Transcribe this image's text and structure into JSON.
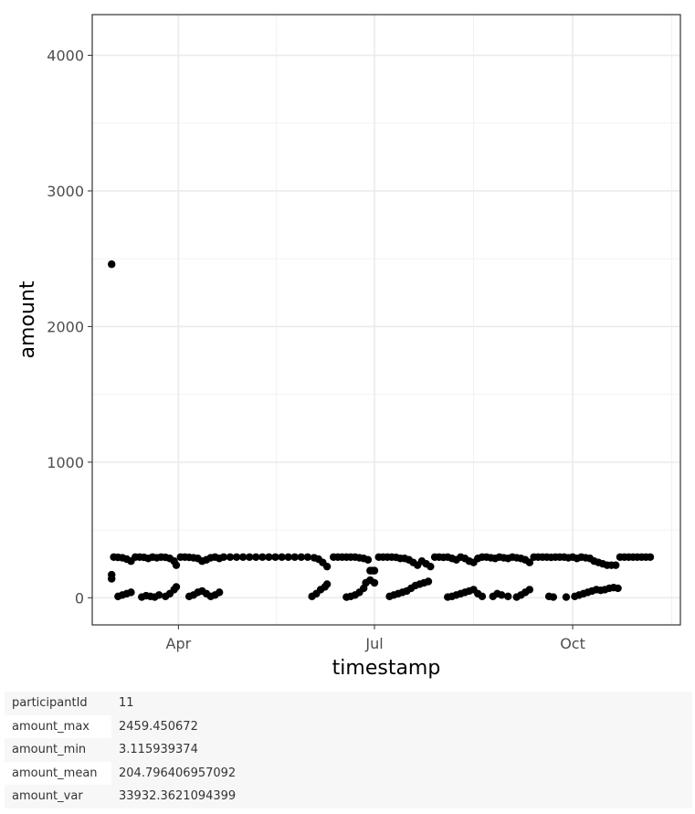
{
  "chart_data": {
    "type": "scatter",
    "title": "",
    "xlabel": "timestamp",
    "ylabel": "amount",
    "x_axis_type": "date",
    "xlim": [
      "2022-02-20",
      "2022-11-20"
    ],
    "ylim": [
      -200,
      4300
    ],
    "x_ticks": [
      {
        "label": "Apr",
        "date": "2022-04-01"
      },
      {
        "label": "Jul",
        "date": "2022-07-01"
      },
      {
        "label": "Oct",
        "date": "2022-10-01"
      }
    ],
    "y_ticks": [
      0,
      1000,
      2000,
      3000,
      4000
    ],
    "grid": true,
    "point_color": "#000000",
    "series": [
      {
        "points": [
          {
            "x": "2022-03-01",
            "y": 2459.45
          },
          {
            "x": "2022-03-01",
            "y": 170
          },
          {
            "x": "2022-03-01",
            "y": 140
          },
          {
            "x": "2022-03-02",
            "y": 300
          },
          {
            "x": "2022-03-04",
            "y": 298
          },
          {
            "x": "2022-03-06",
            "y": 295
          },
          {
            "x": "2022-03-08",
            "y": 285
          },
          {
            "x": "2022-03-10",
            "y": 270
          },
          {
            "x": "2022-03-12",
            "y": 300
          },
          {
            "x": "2022-03-14",
            "y": 300
          },
          {
            "x": "2022-03-16",
            "y": 298
          },
          {
            "x": "2022-03-18",
            "y": 290
          },
          {
            "x": "2022-03-20",
            "y": 300
          },
          {
            "x": "2022-03-22",
            "y": 295
          },
          {
            "x": "2022-03-24",
            "y": 300
          },
          {
            "x": "2022-03-26",
            "y": 298
          },
          {
            "x": "2022-03-28",
            "y": 290
          },
          {
            "x": "2022-03-30",
            "y": 270
          },
          {
            "x": "2022-03-31",
            "y": 240
          },
          {
            "x": "2022-04-02",
            "y": 300
          },
          {
            "x": "2022-04-04",
            "y": 300
          },
          {
            "x": "2022-04-06",
            "y": 298
          },
          {
            "x": "2022-04-08",
            "y": 295
          },
          {
            "x": "2022-04-10",
            "y": 290
          },
          {
            "x": "2022-04-12",
            "y": 270
          },
          {
            "x": "2022-04-14",
            "y": 280
          },
          {
            "x": "2022-04-16",
            "y": 295
          },
          {
            "x": "2022-04-18",
            "y": 300
          },
          {
            "x": "2022-04-20",
            "y": 290
          },
          {
            "x": "2022-04-22",
            "y": 300
          },
          {
            "x": "2022-04-25",
            "y": 300
          },
          {
            "x": "2022-04-28",
            "y": 300
          },
          {
            "x": "2022-05-01",
            "y": 300
          },
          {
            "x": "2022-05-04",
            "y": 300
          },
          {
            "x": "2022-05-07",
            "y": 300
          },
          {
            "x": "2022-05-10",
            "y": 300
          },
          {
            "x": "2022-05-13",
            "y": 300
          },
          {
            "x": "2022-05-16",
            "y": 300
          },
          {
            "x": "2022-05-19",
            "y": 300
          },
          {
            "x": "2022-05-22",
            "y": 300
          },
          {
            "x": "2022-05-25",
            "y": 300
          },
          {
            "x": "2022-05-28",
            "y": 300
          },
          {
            "x": "2022-05-31",
            "y": 300
          },
          {
            "x": "2022-06-03",
            "y": 295
          },
          {
            "x": "2022-06-05",
            "y": 285
          },
          {
            "x": "2022-06-07",
            "y": 260
          },
          {
            "x": "2022-06-09",
            "y": 230
          },
          {
            "x": "2022-06-12",
            "y": 300
          },
          {
            "x": "2022-06-14",
            "y": 300
          },
          {
            "x": "2022-06-16",
            "y": 300
          },
          {
            "x": "2022-06-18",
            "y": 300
          },
          {
            "x": "2022-06-20",
            "y": 300
          },
          {
            "x": "2022-06-22",
            "y": 300
          },
          {
            "x": "2022-06-24",
            "y": 295
          },
          {
            "x": "2022-06-26",
            "y": 290
          },
          {
            "x": "2022-06-28",
            "y": 280
          },
          {
            "x": "2022-06-29",
            "y": 200
          },
          {
            "x": "2022-06-30",
            "y": 200
          },
          {
            "x": "2022-07-01",
            "y": 200
          },
          {
            "x": "2022-07-03",
            "y": 300
          },
          {
            "x": "2022-07-05",
            "y": 300
          },
          {
            "x": "2022-07-07",
            "y": 300
          },
          {
            "x": "2022-07-09",
            "y": 300
          },
          {
            "x": "2022-07-11",
            "y": 298
          },
          {
            "x": "2022-07-13",
            "y": 290
          },
          {
            "x": "2022-07-15",
            "y": 290
          },
          {
            "x": "2022-07-17",
            "y": 280
          },
          {
            "x": "2022-07-19",
            "y": 260
          },
          {
            "x": "2022-07-21",
            "y": 240
          },
          {
            "x": "2022-07-23",
            "y": 270
          },
          {
            "x": "2022-07-25",
            "y": 250
          },
          {
            "x": "2022-07-27",
            "y": 230
          },
          {
            "x": "2022-07-29",
            "y": 300
          },
          {
            "x": "2022-07-31",
            "y": 300
          },
          {
            "x": "2022-08-02",
            "y": 298
          },
          {
            "x": "2022-08-04",
            "y": 300
          },
          {
            "x": "2022-08-06",
            "y": 290
          },
          {
            "x": "2022-08-08",
            "y": 280
          },
          {
            "x": "2022-08-10",
            "y": 300
          },
          {
            "x": "2022-08-12",
            "y": 290
          },
          {
            "x": "2022-08-14",
            "y": 270
          },
          {
            "x": "2022-08-16",
            "y": 260
          },
          {
            "x": "2022-08-18",
            "y": 290
          },
          {
            "x": "2022-08-20",
            "y": 300
          },
          {
            "x": "2022-08-22",
            "y": 300
          },
          {
            "x": "2022-08-24",
            "y": 295
          },
          {
            "x": "2022-08-26",
            "y": 290
          },
          {
            "x": "2022-08-28",
            "y": 300
          },
          {
            "x": "2022-08-30",
            "y": 295
          },
          {
            "x": "2022-09-01",
            "y": 290
          },
          {
            "x": "2022-09-03",
            "y": 300
          },
          {
            "x": "2022-09-05",
            "y": 295
          },
          {
            "x": "2022-09-07",
            "y": 290
          },
          {
            "x": "2022-09-09",
            "y": 280
          },
          {
            "x": "2022-09-11",
            "y": 260
          },
          {
            "x": "2022-09-13",
            "y": 300
          },
          {
            "x": "2022-09-15",
            "y": 300
          },
          {
            "x": "2022-09-17",
            "y": 300
          },
          {
            "x": "2022-09-19",
            "y": 300
          },
          {
            "x": "2022-09-21",
            "y": 298
          },
          {
            "x": "2022-09-23",
            "y": 300
          },
          {
            "x": "2022-09-25",
            "y": 300
          },
          {
            "x": "2022-09-27",
            "y": 300
          },
          {
            "x": "2022-09-29",
            "y": 295
          },
          {
            "x": "2022-10-01",
            "y": 300
          },
          {
            "x": "2022-10-03",
            "y": 290
          },
          {
            "x": "2022-10-05",
            "y": 300
          },
          {
            "x": "2022-10-07",
            "y": 295
          },
          {
            "x": "2022-10-09",
            "y": 290
          },
          {
            "x": "2022-10-11",
            "y": 270
          },
          {
            "x": "2022-10-13",
            "y": 260
          },
          {
            "x": "2022-10-15",
            "y": 250
          },
          {
            "x": "2022-10-17",
            "y": 240
          },
          {
            "x": "2022-10-19",
            "y": 240
          },
          {
            "x": "2022-10-21",
            "y": 240
          },
          {
            "x": "2022-10-23",
            "y": 300
          },
          {
            "x": "2022-10-25",
            "y": 300
          },
          {
            "x": "2022-10-27",
            "y": 300
          },
          {
            "x": "2022-10-29",
            "y": 300
          },
          {
            "x": "2022-10-31",
            "y": 300
          },
          {
            "x": "2022-11-02",
            "y": 300
          },
          {
            "x": "2022-11-04",
            "y": 300
          },
          {
            "x": "2022-11-06",
            "y": 300
          },
          {
            "x": "2022-03-04",
            "y": 10
          },
          {
            "x": "2022-03-06",
            "y": 20
          },
          {
            "x": "2022-03-08",
            "y": 30
          },
          {
            "x": "2022-03-10",
            "y": 40
          },
          {
            "x": "2022-03-15",
            "y": 5
          },
          {
            "x": "2022-03-17",
            "y": 15
          },
          {
            "x": "2022-03-19",
            "y": 10
          },
          {
            "x": "2022-03-21",
            "y": 5
          },
          {
            "x": "2022-03-23",
            "y": 20
          },
          {
            "x": "2022-03-26",
            "y": 10
          },
          {
            "x": "2022-03-28",
            "y": 30
          },
          {
            "x": "2022-03-30",
            "y": 60
          },
          {
            "x": "2022-03-31",
            "y": 80
          },
          {
            "x": "2022-04-06",
            "y": 10
          },
          {
            "x": "2022-04-08",
            "y": 20
          },
          {
            "x": "2022-04-10",
            "y": 40
          },
          {
            "x": "2022-04-12",
            "y": 50
          },
          {
            "x": "2022-04-14",
            "y": 30
          },
          {
            "x": "2022-04-16",
            "y": 10
          },
          {
            "x": "2022-04-18",
            "y": 20
          },
          {
            "x": "2022-04-20",
            "y": 40
          },
          {
            "x": "2022-06-02",
            "y": 10
          },
          {
            "x": "2022-06-04",
            "y": 30
          },
          {
            "x": "2022-06-06",
            "y": 60
          },
          {
            "x": "2022-06-08",
            "y": 80
          },
          {
            "x": "2022-06-09",
            "y": 100
          },
          {
            "x": "2022-06-18",
            "y": 5
          },
          {
            "x": "2022-06-20",
            "y": 10
          },
          {
            "x": "2022-06-22",
            "y": 20
          },
          {
            "x": "2022-06-24",
            "y": 40
          },
          {
            "x": "2022-06-26",
            "y": 70
          },
          {
            "x": "2022-06-27",
            "y": 110
          },
          {
            "x": "2022-06-29",
            "y": 130
          },
          {
            "x": "2022-07-01",
            "y": 110
          },
          {
            "x": "2022-07-08",
            "y": 10
          },
          {
            "x": "2022-07-10",
            "y": 20
          },
          {
            "x": "2022-07-12",
            "y": 30
          },
          {
            "x": "2022-07-14",
            "y": 40
          },
          {
            "x": "2022-07-16",
            "y": 50
          },
          {
            "x": "2022-07-18",
            "y": 70
          },
          {
            "x": "2022-07-20",
            "y": 90
          },
          {
            "x": "2022-07-22",
            "y": 100
          },
          {
            "x": "2022-07-24",
            "y": 110
          },
          {
            "x": "2022-07-26",
            "y": 120
          },
          {
            "x": "2022-08-04",
            "y": 5
          },
          {
            "x": "2022-08-06",
            "y": 10
          },
          {
            "x": "2022-08-08",
            "y": 20
          },
          {
            "x": "2022-08-10",
            "y": 30
          },
          {
            "x": "2022-08-12",
            "y": 40
          },
          {
            "x": "2022-08-14",
            "y": 50
          },
          {
            "x": "2022-08-16",
            "y": 60
          },
          {
            "x": "2022-08-18",
            "y": 30
          },
          {
            "x": "2022-08-20",
            "y": 10
          },
          {
            "x": "2022-08-25",
            "y": 10
          },
          {
            "x": "2022-08-27",
            "y": 30
          },
          {
            "x": "2022-08-29",
            "y": 20
          },
          {
            "x": "2022-09-01",
            "y": 10
          },
          {
            "x": "2022-09-05",
            "y": 5
          },
          {
            "x": "2022-09-07",
            "y": 20
          },
          {
            "x": "2022-09-09",
            "y": 40
          },
          {
            "x": "2022-09-11",
            "y": 60
          },
          {
            "x": "2022-09-20",
            "y": 10
          },
          {
            "x": "2022-09-22",
            "y": 5
          },
          {
            "x": "2022-09-28",
            "y": 5
          },
          {
            "x": "2022-10-02",
            "y": 10
          },
          {
            "x": "2022-10-04",
            "y": 20
          },
          {
            "x": "2022-10-06",
            "y": 30
          },
          {
            "x": "2022-10-08",
            "y": 40
          },
          {
            "x": "2022-10-10",
            "y": 50
          },
          {
            "x": "2022-10-12",
            "y": 60
          },
          {
            "x": "2022-10-14",
            "y": 55
          },
          {
            "x": "2022-10-16",
            "y": 60
          },
          {
            "x": "2022-10-18",
            "y": 70
          },
          {
            "x": "2022-10-20",
            "y": 75
          },
          {
            "x": "2022-10-22",
            "y": 70
          }
        ]
      }
    ]
  },
  "stats": {
    "rows": [
      {
        "key": "participantId",
        "value": "11"
      },
      {
        "key": "amount_max",
        "value": "2459.450672"
      },
      {
        "key": "amount_min",
        "value": "3.115939374"
      },
      {
        "key": "amount_mean",
        "value": "204.796406957092"
      },
      {
        "key": "amount_var",
        "value": "33932.3621094399"
      }
    ]
  }
}
